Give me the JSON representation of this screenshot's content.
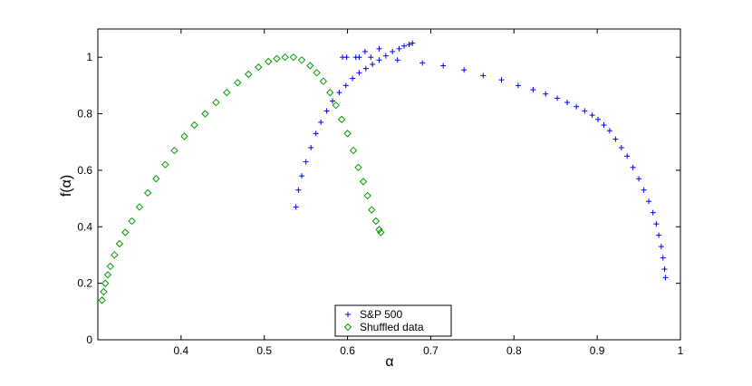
{
  "chart_data": {
    "type": "scatter",
    "title": "",
    "xlabel": "α",
    "ylabel": "f(α)",
    "xlim": [
      0.3,
      1.0
    ],
    "ylim": [
      0,
      1.1
    ],
    "xticks": [
      0.4,
      0.5,
      0.6,
      0.7,
      0.8,
      0.9,
      1
    ],
    "yticks": [
      0,
      0.2,
      0.4,
      0.6,
      0.8,
      1
    ],
    "xtick_labels": [
      "0.4",
      "0.5",
      "0.6",
      "0.7",
      "0.8",
      "0.9",
      "1"
    ],
    "ytick_labels": [
      "0",
      "0.2",
      "0.4",
      "0.6",
      "0.8",
      "1"
    ],
    "grid": false,
    "legend": {
      "placement": "bottom-center",
      "entries": [
        "S&P 500",
        "Shuffled data"
      ]
    },
    "series": [
      {
        "name": "S&P 500",
        "marker": "plus",
        "color": "#0000ff",
        "points": [
          [
            0.538,
            0.47
          ],
          [
            0.541,
            0.53
          ],
          [
            0.545,
            0.58
          ],
          [
            0.55,
            0.63
          ],
          [
            0.556,
            0.68
          ],
          [
            0.562,
            0.73
          ],
          [
            0.568,
            0.77
          ],
          [
            0.575,
            0.81
          ],
          [
            0.582,
            0.845
          ],
          [
            0.59,
            0.875
          ],
          [
            0.598,
            0.9
          ],
          [
            0.606,
            0.925
          ],
          [
            0.614,
            0.945
          ],
          [
            0.622,
            0.96
          ],
          [
            0.63,
            0.975
          ],
          [
            0.638,
            0.99
          ],
          [
            0.646,
            1.005
          ],
          [
            0.654,
            1.02
          ],
          [
            0.662,
            1.03
          ],
          [
            0.668,
            1.04
          ],
          [
            0.674,
            1.045
          ],
          [
            0.678,
            1.05
          ],
          [
            0.594,
            1.0
          ],
          [
            0.599,
            1.0
          ],
          [
            0.61,
            1.0
          ],
          [
            0.614,
            1.0
          ],
          [
            0.628,
            1.0
          ],
          [
            0.621,
            1.02
          ],
          [
            0.638,
            1.03
          ],
          [
            0.66,
            0.99
          ],
          [
            0.69,
            0.98
          ],
          [
            0.715,
            0.97
          ],
          [
            0.74,
            0.955
          ],
          [
            0.763,
            0.935
          ],
          [
            0.785,
            0.92
          ],
          [
            0.805,
            0.9
          ],
          [
            0.823,
            0.885
          ],
          [
            0.838,
            0.87
          ],
          [
            0.852,
            0.855
          ],
          [
            0.864,
            0.84
          ],
          [
            0.875,
            0.825
          ],
          [
            0.885,
            0.81
          ],
          [
            0.894,
            0.795
          ],
          [
            0.901,
            0.78
          ],
          [
            0.908,
            0.76
          ],
          [
            0.915,
            0.74
          ],
          [
            0.922,
            0.71
          ],
          [
            0.929,
            0.68
          ],
          [
            0.936,
            0.65
          ],
          [
            0.943,
            0.61
          ],
          [
            0.95,
            0.57
          ],
          [
            0.956,
            0.53
          ],
          [
            0.962,
            0.49
          ],
          [
            0.967,
            0.45
          ],
          [
            0.971,
            0.41
          ],
          [
            0.974,
            0.37
          ],
          [
            0.977,
            0.33
          ],
          [
            0.979,
            0.29
          ],
          [
            0.981,
            0.25
          ],
          [
            0.982,
            0.22
          ]
        ]
      },
      {
        "name": "Shuffled data",
        "marker": "diamond",
        "color": "#00a000",
        "points": [
          [
            0.305,
            0.14
          ],
          [
            0.307,
            0.17
          ],
          [
            0.309,
            0.2
          ],
          [
            0.312,
            0.23
          ],
          [
            0.315,
            0.26
          ],
          [
            0.32,
            0.3
          ],
          [
            0.326,
            0.34
          ],
          [
            0.333,
            0.38
          ],
          [
            0.341,
            0.42
          ],
          [
            0.35,
            0.47
          ],
          [
            0.36,
            0.52
          ],
          [
            0.37,
            0.57
          ],
          [
            0.381,
            0.62
          ],
          [
            0.392,
            0.67
          ],
          [
            0.404,
            0.72
          ],
          [
            0.416,
            0.76
          ],
          [
            0.429,
            0.8
          ],
          [
            0.442,
            0.84
          ],
          [
            0.455,
            0.875
          ],
          [
            0.468,
            0.91
          ],
          [
            0.481,
            0.94
          ],
          [
            0.493,
            0.965
          ],
          [
            0.505,
            0.985
          ],
          [
            0.515,
            0.995
          ],
          [
            0.525,
            1.0
          ],
          [
            0.535,
            1.0
          ],
          [
            0.545,
            0.99
          ],
          [
            0.555,
            0.97
          ],
          [
            0.563,
            0.945
          ],
          [
            0.571,
            0.915
          ],
          [
            0.579,
            0.875
          ],
          [
            0.586,
            0.83
          ],
          [
            0.593,
            0.78
          ],
          [
            0.6,
            0.73
          ],
          [
            0.607,
            0.67
          ],
          [
            0.613,
            0.61
          ],
          [
            0.619,
            0.56
          ],
          [
            0.624,
            0.51
          ],
          [
            0.629,
            0.46
          ],
          [
            0.634,
            0.42
          ],
          [
            0.638,
            0.39
          ],
          [
            0.64,
            0.38
          ]
        ]
      }
    ]
  }
}
